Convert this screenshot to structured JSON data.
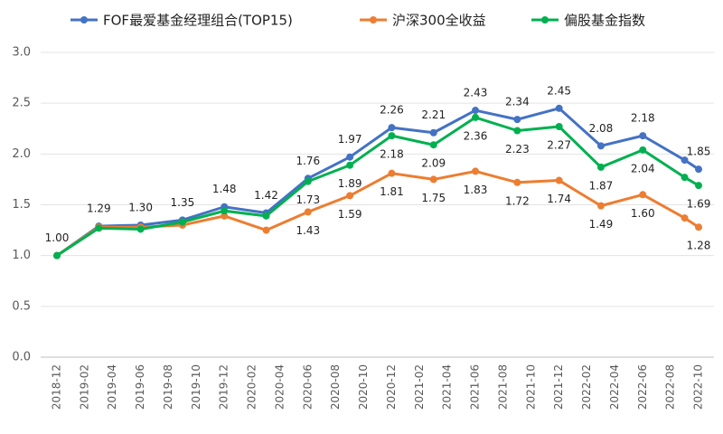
{
  "chart_data": {
    "type": "line",
    "categories": [
      "2018-12",
      null,
      "2019-02",
      null,
      "2019-04",
      null,
      "2019-06",
      null,
      "2019-08",
      null,
      "2019-10",
      null,
      "2019-12",
      null,
      "2020-02",
      null,
      "2020-04",
      null,
      "2020-06",
      null,
      "2020-08",
      null,
      "2020-10",
      null,
      "2020-12",
      null,
      "2021-02",
      null,
      "2021-04",
      null,
      "2021-06",
      null,
      "2021-08",
      null,
      "2021-10",
      null,
      "2021-12",
      null,
      "2022-02",
      null,
      "2022-04",
      null,
      "2022-06",
      null,
      "2022-08",
      null,
      "2022-10"
    ],
    "series": [
      {
        "name": "FOF最爱基金经理组合(TOP15)",
        "color": "#4472c4",
        "values": [
          1.0,
          null,
          null,
          1.29,
          null,
          null,
          1.3,
          null,
          null,
          1.35,
          null,
          null,
          1.48,
          null,
          null,
          1.42,
          null,
          null,
          1.76,
          null,
          null,
          1.97,
          null,
          null,
          2.26,
          null,
          null,
          2.21,
          null,
          null,
          2.43,
          null,
          null,
          2.34,
          null,
          null,
          2.45,
          null,
          null,
          2.08,
          null,
          null,
          2.18,
          null,
          null,
          1.94,
          1.85
        ],
        "value_labels": [
          "1.00",
          null,
          null,
          "1.29",
          null,
          null,
          "1.30",
          null,
          null,
          "1.35",
          null,
          null,
          "1.48",
          null,
          null,
          "1.42",
          null,
          null,
          "1.76",
          null,
          null,
          "1.97",
          null,
          null,
          "2.26",
          null,
          null,
          "2.21",
          null,
          null,
          "2.43",
          null,
          null,
          "2.34",
          null,
          null,
          "2.45",
          null,
          null,
          "2.08",
          null,
          null,
          "2.18",
          null,
          null,
          null,
          "1.85"
        ]
      },
      {
        "name": "沪深300全收益",
        "color": "#ed7d31",
        "values": [
          1.0,
          null,
          null,
          1.28,
          null,
          null,
          1.28,
          null,
          null,
          1.3,
          null,
          null,
          1.39,
          null,
          null,
          1.25,
          null,
          null,
          1.43,
          null,
          null,
          1.59,
          null,
          null,
          1.81,
          null,
          null,
          1.75,
          null,
          null,
          1.83,
          null,
          null,
          1.72,
          null,
          null,
          1.74,
          null,
          null,
          1.49,
          null,
          null,
          1.6,
          null,
          null,
          1.37,
          1.28
        ],
        "value_labels": [
          null,
          null,
          null,
          null,
          null,
          null,
          null,
          null,
          null,
          null,
          null,
          null,
          null,
          null,
          null,
          null,
          null,
          null,
          "1.43",
          null,
          null,
          "1.59",
          null,
          null,
          "1.81",
          null,
          null,
          "1.75",
          null,
          null,
          "1.83",
          null,
          null,
          "1.72",
          null,
          null,
          "1.74",
          null,
          null,
          "1.49",
          null,
          null,
          "1.60",
          null,
          null,
          null,
          "1.28"
        ]
      },
      {
        "name": "偏股基金指数",
        "color": "#00b050",
        "values": [
          1.0,
          null,
          null,
          1.27,
          null,
          null,
          1.26,
          null,
          null,
          1.33,
          null,
          null,
          1.44,
          null,
          null,
          1.39,
          null,
          null,
          1.73,
          null,
          null,
          1.89,
          null,
          null,
          2.18,
          null,
          null,
          2.09,
          null,
          null,
          2.36,
          null,
          null,
          2.23,
          null,
          null,
          2.27,
          null,
          null,
          1.87,
          null,
          null,
          2.04,
          null,
          null,
          1.77,
          1.69
        ],
        "value_labels": [
          null,
          null,
          null,
          null,
          null,
          null,
          null,
          null,
          null,
          null,
          null,
          null,
          null,
          null,
          null,
          null,
          null,
          null,
          "1.73",
          null,
          null,
          "1.89",
          null,
          null,
          "2.18",
          null,
          null,
          "2.09",
          null,
          null,
          "2.36",
          null,
          null,
          "2.23",
          null,
          null,
          "2.27",
          null,
          null,
          "1.87",
          null,
          null,
          "2.04",
          null,
          null,
          null,
          "1.69"
        ]
      }
    ],
    "ylim": [
      0,
      3
    ],
    "yticks": [
      {
        "value": 0,
        "label": "0.0"
      },
      {
        "value": 0.5,
        "label": "0.5"
      },
      {
        "value": 1,
        "label": "1.0"
      },
      {
        "value": 1.5,
        "label": "1.5"
      },
      {
        "value": 2,
        "label": "2.0"
      },
      {
        "value": 2.5,
        "label": "2.5"
      },
      {
        "value": 3,
        "label": "3.0"
      }
    ],
    "grid": true
  }
}
